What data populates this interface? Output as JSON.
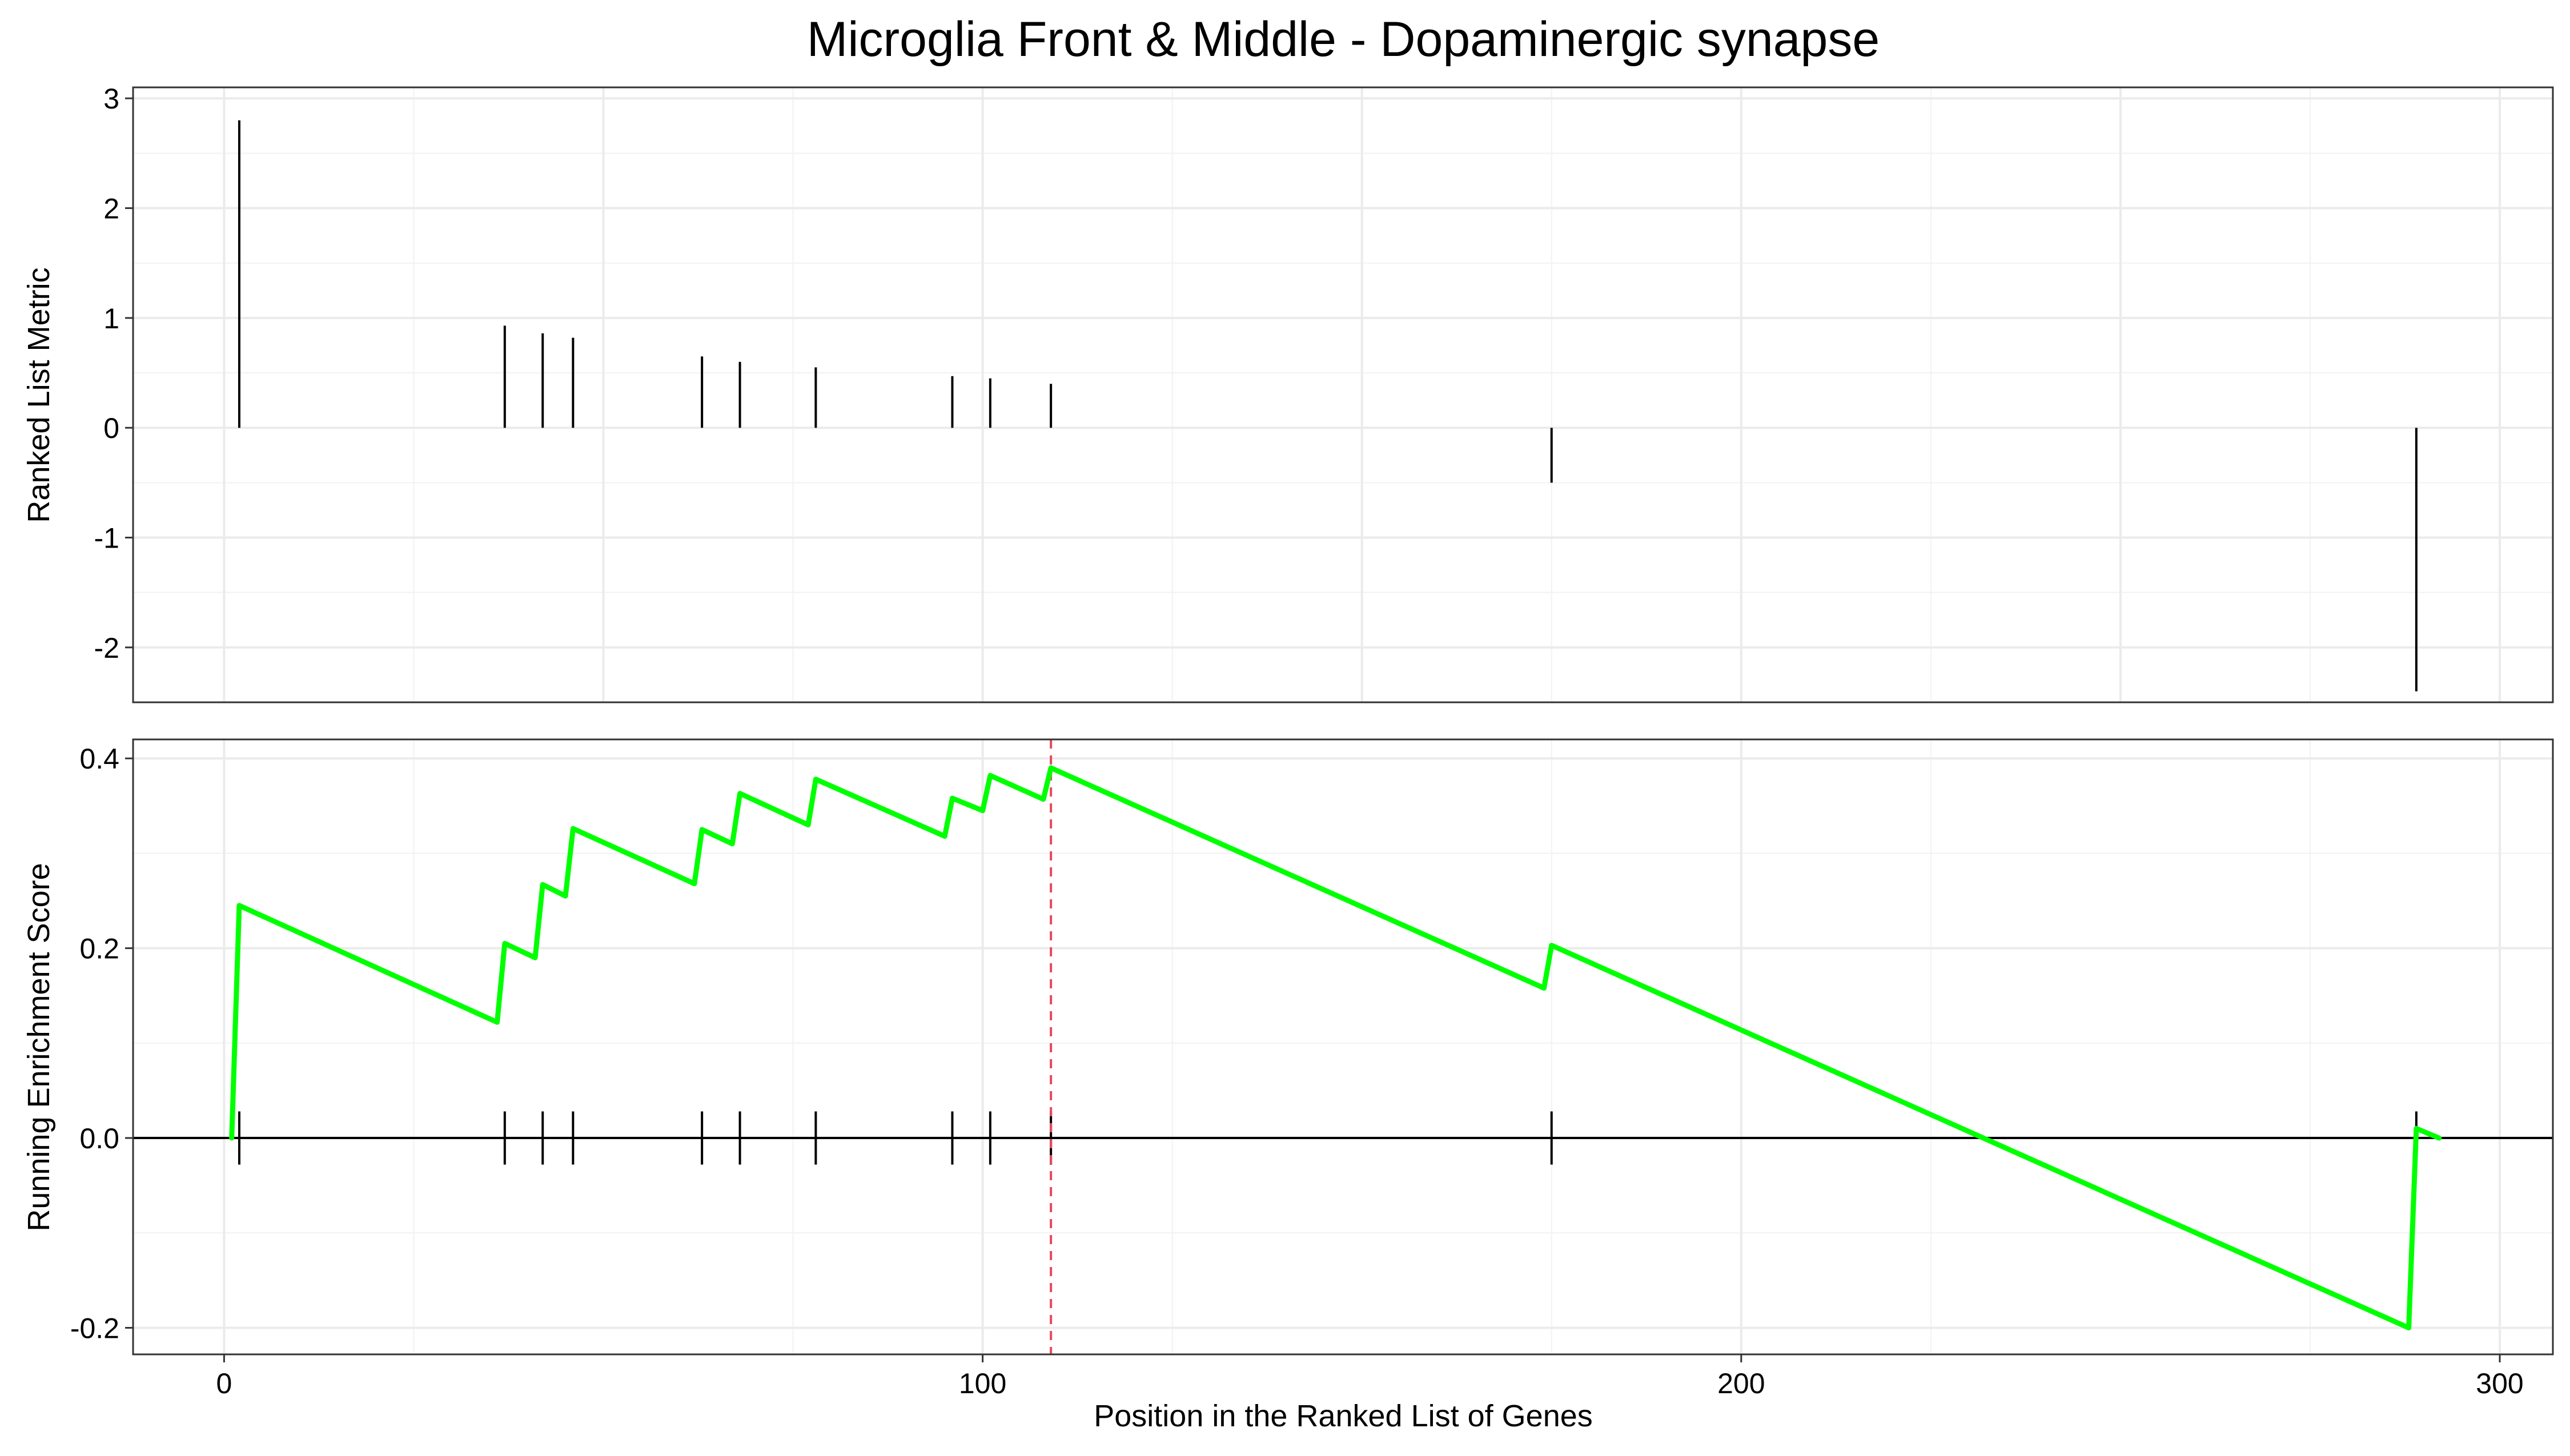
{
  "chart_data": [
    {
      "type": "bar",
      "title": "Microglia Front & Middle - Dopaminergic synapse",
      "ylabel": "Ranked List Metric",
      "xlim": [
        -12,
        307
      ],
      "ylim": [
        -2.5,
        3.1
      ],
      "x_ticks": [
        0,
        50,
        100,
        150,
        200,
        250,
        300
      ],
      "y_ticks": [
        3,
        2,
        1,
        0,
        -1,
        -2
      ],
      "y_tick_labels": [
        "3",
        "2",
        "1",
        "0",
        "-1",
        "-2"
      ],
      "grid": true,
      "series": [
        {
          "x": [
            2,
            37,
            42,
            46,
            63,
            68,
            78,
            96,
            101,
            109,
            175,
            289
          ],
          "values": [
            2.8,
            0.93,
            0.86,
            0.82,
            0.65,
            0.6,
            0.55,
            0.47,
            0.45,
            0.4,
            -0.5,
            -2.4
          ]
        }
      ]
    },
    {
      "type": "line",
      "ylabel": "Running Enrichment Score",
      "xlabel": "Position in the Ranked List of Genes",
      "xlim": [
        -12,
        307
      ],
      "ylim": [
        -0.228,
        0.42
      ],
      "x_ticks": [
        0,
        100,
        200,
        300
      ],
      "x_tick_labels": [
        "0",
        "100",
        "200",
        "300"
      ],
      "y_ticks": [
        0.4,
        0.2,
        0.0,
        -0.2
      ],
      "y_tick_labels": [
        "0.4",
        "0.2",
        "0.0",
        "-0.2"
      ],
      "grid": true,
      "peak_x": 109,
      "hit_positions": [
        2,
        37,
        42,
        46,
        63,
        68,
        78,
        96,
        101,
        109,
        175,
        289
      ],
      "series": [
        {
          "color": "#00ff00",
          "x": [
            1,
            2,
            36,
            37,
            41,
            42,
            45,
            46,
            62,
            63,
            67,
            68,
            77,
            78,
            95,
            96,
            100,
            101,
            108,
            109,
            174,
            175,
            288,
            289,
            292
          ],
          "values": [
            0.0,
            0.245,
            0.122,
            0.205,
            0.19,
            0.267,
            0.255,
            0.326,
            0.268,
            0.325,
            0.31,
            0.363,
            0.33,
            0.378,
            0.318,
            0.358,
            0.345,
            0.382,
            0.357,
            0.39,
            0.158,
            0.203,
            -0.2,
            0.01,
            0.0
          ]
        }
      ]
    }
  ]
}
